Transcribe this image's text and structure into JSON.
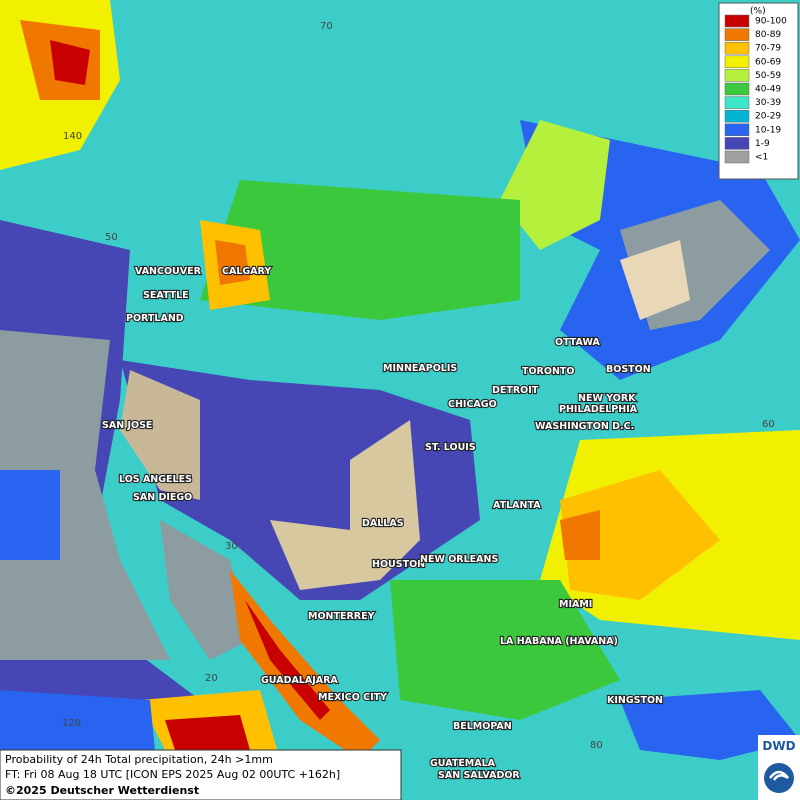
{
  "legend": {
    "title": "(%)",
    "items": [
      {
        "label": "90-100",
        "color": "#c80000"
      },
      {
        "label": "80-89",
        "color": "#f07800"
      },
      {
        "label": "70-79",
        "color": "#ffc000"
      },
      {
        "label": "60-69",
        "color": "#f0f000"
      },
      {
        "label": "50-59",
        "color": "#b4f03c"
      },
      {
        "label": "40-49",
        "color": "#3cc83c"
      },
      {
        "label": "30-39",
        "color": "#3ce6c8"
      },
      {
        "label": "20-29",
        "color": "#00b4d2"
      },
      {
        "label": "10-19",
        "color": "#2864f0"
      },
      {
        "label": "1-9",
        "color": "#4646b4"
      },
      {
        "label": "<1",
        "color": "#a0a0a0"
      }
    ]
  },
  "cities": [
    "VANCOUVER",
    "CALGARY",
    "SEATTLE",
    "PORTLAND",
    "MINNEAPOLIS",
    "OTTAWA",
    "TORONTO",
    "BOSTON",
    "DETROIT",
    "CHICAGO",
    "NEW YORK",
    "PHILADELPHIA",
    "WASHINGTON D.C.",
    "SAN JOSE",
    "ST. LOUIS",
    "LOS ANGELES",
    "SAN DIEGO",
    "ATLANTA",
    "DALLAS",
    "HOUSTON",
    "NEW ORLEANS",
    "MIAMI",
    "MONTERREY",
    "LA HABANA (HAVANA)",
    "GUADALAJARA",
    "MEXICO CITY",
    "KINGSTON",
    "BELMOPAN",
    "GUATEMALA",
    "SAN SALVADOR"
  ],
  "grid_labels": [
    "70",
    "140",
    "50",
    "60",
    "30",
    "20",
    "120",
    "80"
  ],
  "footer": {
    "line1": "Probability of 24h Total precipitation, 24h >1mm",
    "line2": "FT: Fri 08 Aug 18 UTC [ICON EPS 2025 Aug 02 00UTC +162h]",
    "copyright": "©2025 Deutscher Wetterdienst"
  },
  "logo": "DWD"
}
